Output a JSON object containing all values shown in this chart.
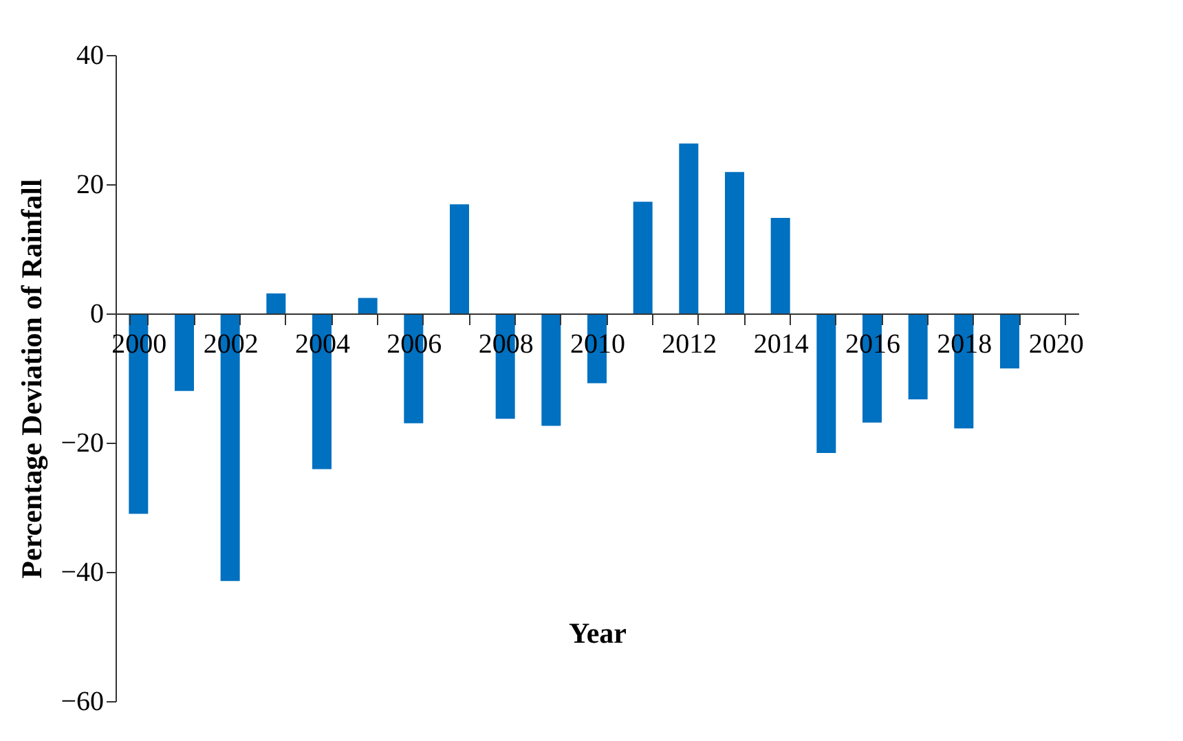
{
  "chart_data": {
    "type": "bar",
    "xlabel": "Year",
    "ylabel": "Percentage Deviation of Rainfall",
    "categories": [
      "2000",
      null,
      "2002",
      null,
      "2004",
      null,
      "2006",
      null,
      "2008",
      null,
      "2010",
      null,
      "2012",
      null,
      "2014",
      null,
      "2016",
      null,
      "2018",
      null,
      "2020"
    ],
    "values": [
      -31,
      -12,
      -41.4,
      3.1,
      -24.1,
      2.4,
      -17,
      16.9,
      -16.3,
      -17.4,
      -10.8,
      17.3,
      26.3,
      21.9,
      14.8,
      -21.6,
      -16.9,
      -13.3,
      -17.8,
      -8.5,
      null
    ],
    "color": "#0070c0",
    "ylim": [
      -60,
      40
    ],
    "yticks": [
      -60,
      -40,
      -20,
      0,
      20,
      40
    ],
    "grid": false
  }
}
